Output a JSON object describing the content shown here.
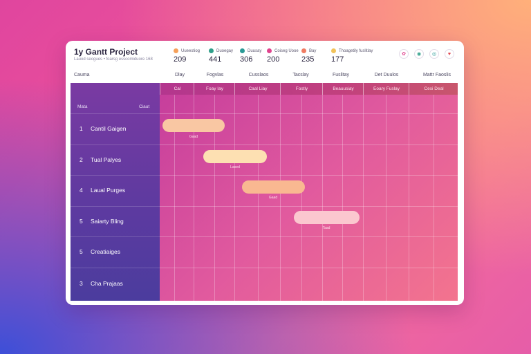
{
  "app": {
    "title": "1y Gantt Project",
    "subtitle": "Lauod seogues • foarsg esscomiduore 168"
  },
  "stats": [
    {
      "label": "Uueestiog",
      "value": "209",
      "color": "#f6a15a"
    },
    {
      "label": "Duoegay",
      "value": "441",
      "color": "#2f9f8a"
    },
    {
      "label": "Duusay",
      "value": "306",
      "color": "#2a9a96"
    },
    {
      "label": "Coiseg Uooe",
      "value": "200",
      "color": "#e0438e"
    },
    {
      "label": "Bay",
      "value": "235",
      "color": "#f07c62"
    },
    {
      "label": "Thoagetily fuslitlay",
      "value": "177",
      "color": "#f2c35a"
    }
  ],
  "icons": [
    {
      "name": "user-icon",
      "glyph": "✿",
      "color": "#e0438e"
    },
    {
      "name": "chat-icon",
      "glyph": "◉",
      "color": "#2f9f8a"
    },
    {
      "name": "settings-icon",
      "glyph": "◎",
      "color": "#2a9a96"
    },
    {
      "name": "heart-icon",
      "glyph": "♥",
      "color": "#e0434e"
    }
  ],
  "column_labels": [
    "Cauma",
    "Dlay",
    "Fogvlas",
    "Cusslaos",
    "Tacslay",
    "Fuslitay",
    "Det Duulos",
    "Mattr Faoslis"
  ],
  "panel": {
    "header_left": "Mata",
    "header_right": "Ciaut"
  },
  "tasks": [
    {
      "num": "1",
      "name": "Cantil Gaigen"
    },
    {
      "num": "2",
      "name": "Tual Palyes"
    },
    {
      "num": "4",
      "name": "Laual Purges"
    },
    {
      "num": "5",
      "name": "Saiarty Bling"
    },
    {
      "num": "5",
      "name": "Creatiaiges"
    },
    {
      "num": "3",
      "name": "Cha Prajaas"
    }
  ],
  "grid_columns": [
    "Cal",
    "Foay Iay",
    "Caal Liay",
    "Fostly",
    "Beauusiay",
    "Eoary Fuslay",
    "Cesi Deal"
  ],
  "bars": [
    {
      "label": "Gaad",
      "color": "#f9c7a3"
    },
    {
      "label": "Laoed",
      "color": "#fde0b2"
    },
    {
      "label": "Gaad",
      "color": "#f9b891"
    },
    {
      "label": "Taad",
      "color": "#fbc7cf"
    }
  ]
}
